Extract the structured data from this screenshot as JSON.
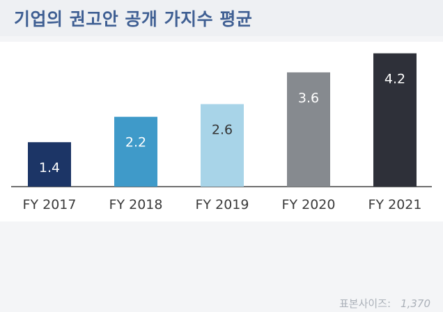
{
  "chart_data": {
    "type": "bar",
    "title": "기업의 권고안 공개 가지수 평균",
    "categories": [
      "FY 2017",
      "FY 2018",
      "FY 2019",
      "FY 2020",
      "FY 2021"
    ],
    "values": [
      1.4,
      2.2,
      2.6,
      3.6,
      4.2
    ],
    "bar_colors": [
      "#1c3566",
      "#3f9ac9",
      "#a8d4e8",
      "#868a8f",
      "#2e3039"
    ],
    "label_colors": [
      "#ffffff",
      "#ffffff",
      "#333333",
      "#ffffff",
      "#ffffff"
    ],
    "ylim": [
      0,
      4.3
    ],
    "grid": false,
    "legend": "none"
  },
  "footer": {
    "sample_label": "표본사이즈:",
    "sample_value": "1,370"
  }
}
